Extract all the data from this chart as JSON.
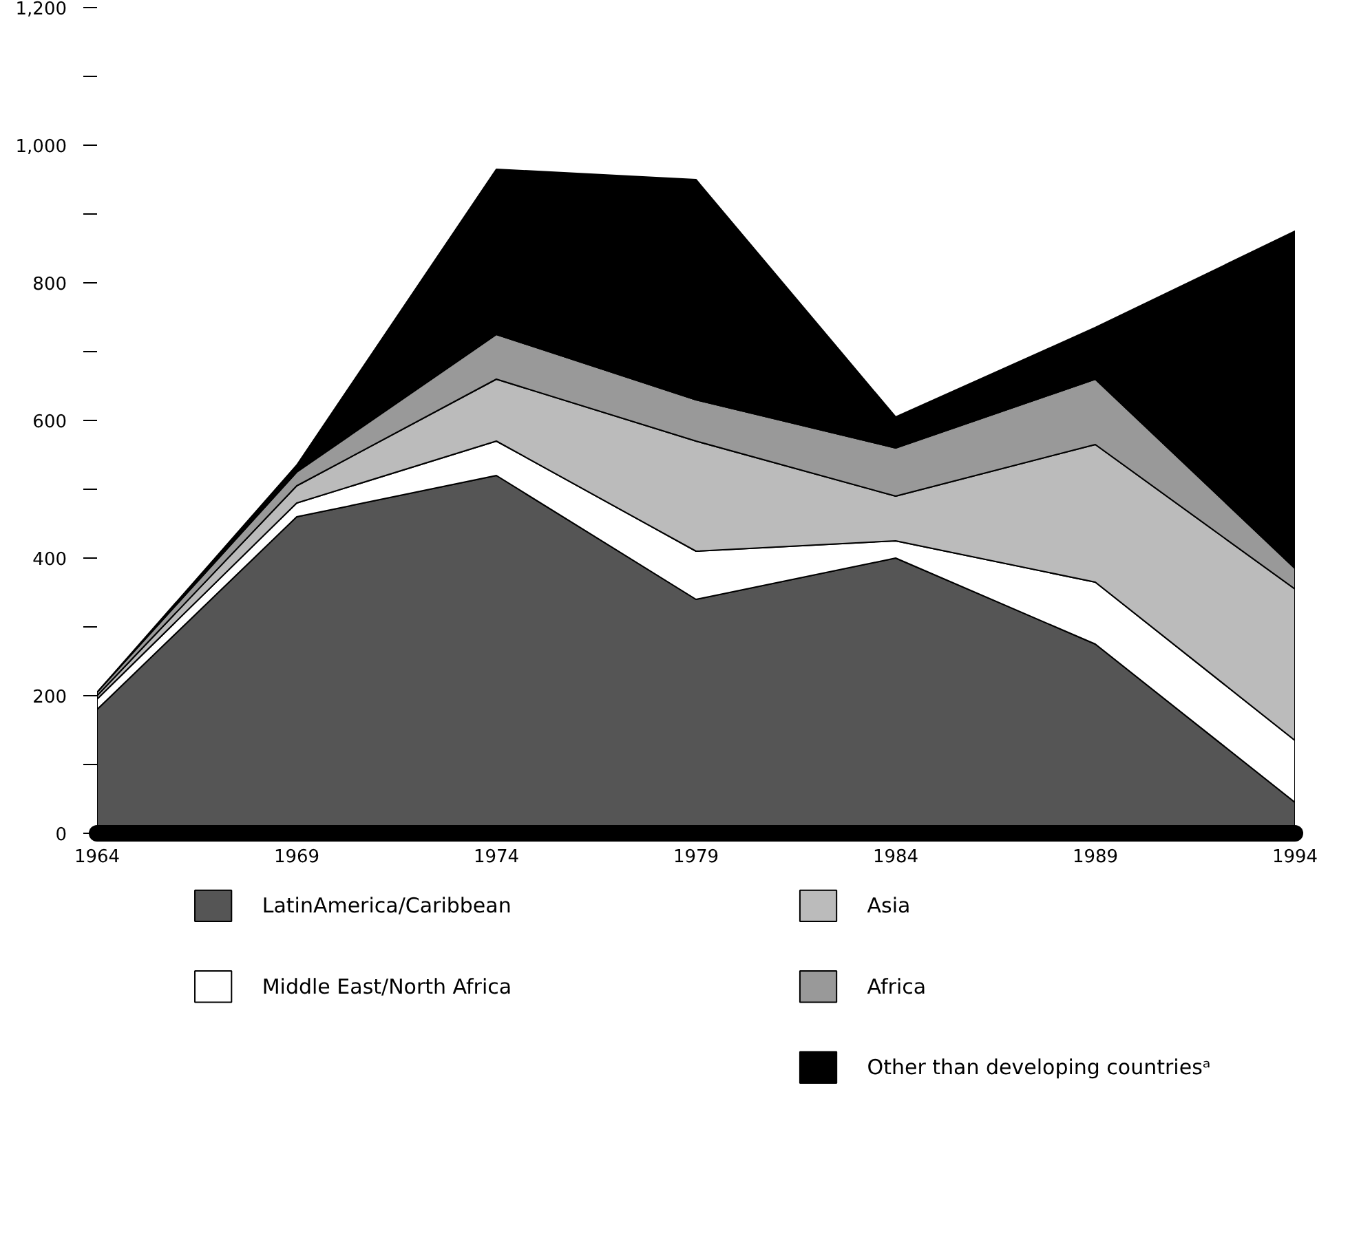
{
  "chart_data": {
    "type": "area",
    "stacked": true,
    "x": [
      1964,
      1969,
      1974,
      1979,
      1984,
      1989,
      1994
    ],
    "xlim": [
      1964,
      1994
    ],
    "xticks": [
      1964,
      1969,
      1974,
      1979,
      1984,
      1989,
      1994
    ],
    "ylim": [
      0,
      1200
    ],
    "yticks": [
      {
        "value": 0,
        "label": "0"
      },
      {
        "value": 100,
        "label": null
      },
      {
        "value": 200,
        "label": "200"
      },
      {
        "value": 300,
        "label": null
      },
      {
        "value": 400,
        "label": "400"
      },
      {
        "value": 500,
        "label": null
      },
      {
        "value": 600,
        "label": "600"
      },
      {
        "value": 700,
        "label": null
      },
      {
        "value": 800,
        "label": "800"
      },
      {
        "value": 900,
        "label": null
      },
      {
        "value": 1000,
        "label": "1,000"
      },
      {
        "value": 1100,
        "label": null
      },
      {
        "value": 1200,
        "label": "1,200"
      }
    ],
    "series": [
      {
        "name": "LatinAmerica/Caribbean",
        "color": "#555555",
        "values": [
          180,
          460,
          520,
          340,
          400,
          275,
          45
        ]
      },
      {
        "name": "Middle East/North Africa",
        "color": "#ffffff",
        "values": [
          15,
          20,
          50,
          70,
          25,
          90,
          90
        ]
      },
      {
        "name": "Asia",
        "color": "#bbbbbb",
        "values": [
          5,
          25,
          90,
          160,
          65,
          200,
          220
        ]
      },
      {
        "name": "Africa",
        "color": "#999999",
        "values": [
          5,
          20,
          65,
          60,
          70,
          95,
          30
        ]
      },
      {
        "name": "Other than developing countriesᵃ",
        "color": "#000000",
        "values": [
          0,
          10,
          240,
          320,
          45,
          75,
          490
        ]
      }
    ],
    "grid": false,
    "legend": "bottom"
  }
}
